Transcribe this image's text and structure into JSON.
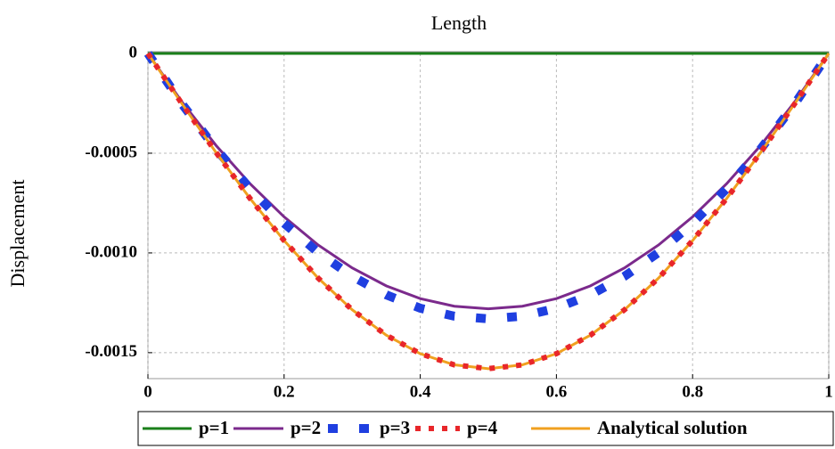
{
  "chart_data": {
    "type": "line",
    "title": "Length",
    "y_label": "Displacement",
    "x": [
      0,
      0.05,
      0.1,
      0.15,
      0.2,
      0.25,
      0.3,
      0.35,
      0.4,
      0.45,
      0.5,
      0.55,
      0.6,
      0.65,
      0.7,
      0.75,
      0.8,
      0.85,
      0.9,
      0.95,
      1
    ],
    "series": [
      {
        "name": "p=1",
        "color": "#1a7f1a",
        "line_style": "solid",
        "values": [
          0,
          0,
          0,
          0,
          0,
          0,
          0,
          0,
          0,
          0,
          0,
          0,
          0,
          0,
          0,
          0,
          0,
          0,
          0,
          0,
          0
        ]
      },
      {
        "name": "p=2",
        "color": "#7b2a8c",
        "line_style": "solid",
        "values": [
          0,
          -0.000243,
          -0.000461,
          -0.000653,
          -0.000819,
          -0.00096,
          -0.001075,
          -0.001165,
          -0.001229,
          -0.001267,
          -0.00128,
          -0.001267,
          -0.001229,
          -0.001165,
          -0.001075,
          -0.00096,
          -0.000819,
          -0.000653,
          -0.000461,
          -0.000243,
          0
        ]
      },
      {
        "name": "p=3",
        "color": "#1f3fe0",
        "line_style": "square-dash",
        "values": [
          0,
          -0.000253,
          -0.000479,
          -0.000678,
          -0.000851,
          -0.000998,
          -0.001117,
          -0.00121,
          -0.001277,
          -0.001317,
          -0.00133,
          -0.001317,
          -0.001277,
          -0.00121,
          -0.001117,
          -0.000998,
          -0.000851,
          -0.000678,
          -0.000479,
          -0.000253,
          0
        ]
      },
      {
        "name": "Analytical solution",
        "color": "#f0a020",
        "line_style": "solid",
        "values": [
          0,
          -0.000252,
          -0.000496,
          -0.000727,
          -0.000938,
          -0.001126,
          -0.001285,
          -0.001412,
          -0.001505,
          -0.001561,
          -0.00158,
          -0.001561,
          -0.001505,
          -0.001412,
          -0.001285,
          -0.001126,
          -0.000938,
          -0.000727,
          -0.000496,
          -0.000252,
          0
        ]
      },
      {
        "name": "p=4",
        "color": "#e8262a",
        "line_style": "dot",
        "values": [
          0,
          -0.000252,
          -0.000496,
          -0.000727,
          -0.000938,
          -0.001126,
          -0.001285,
          -0.001412,
          -0.001505,
          -0.001561,
          -0.00158,
          -0.001561,
          -0.001505,
          -0.001412,
          -0.001285,
          -0.001126,
          -0.000938,
          -0.000727,
          -0.000496,
          -0.000252,
          0
        ]
      }
    ],
    "xlim": [
      0,
      1
    ],
    "xticks": [
      0,
      0.2,
      0.4,
      0.6,
      0.8,
      1
    ],
    "ylim": [
      -0.00163,
      0
    ],
    "yticks": [
      0,
      -0.0005,
      {
        "value": -0.001,
        "label": "-0.0010"
      },
      -0.0015
    ],
    "grid": true,
    "legend": "bottom"
  }
}
